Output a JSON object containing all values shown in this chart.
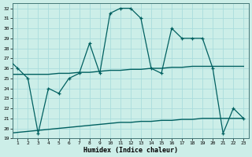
{
  "xlabel": "Humidex (Indice chaleur)",
  "bg_color": "#cceee8",
  "grid_color": "#aadddd",
  "line_color": "#006060",
  "xlim": [
    0.5,
    23.5
  ],
  "ylim": [
    19,
    32.5
  ],
  "x_ticks": [
    1,
    2,
    3,
    4,
    5,
    6,
    7,
    8,
    9,
    10,
    11,
    12,
    13,
    14,
    15,
    16,
    17,
    18,
    19,
    20,
    21,
    22,
    23
  ],
  "y_ticks": [
    19,
    20,
    21,
    22,
    23,
    24,
    25,
    26,
    27,
    28,
    29,
    30,
    31,
    32
  ],
  "main_line_x": [
    0,
    1,
    2,
    3,
    4,
    5,
    6,
    7,
    8,
    9,
    10,
    11,
    12,
    13,
    14,
    15,
    16,
    17,
    18,
    19,
    20,
    21,
    22,
    23
  ],
  "main_line_y": [
    27,
    26,
    25,
    19.5,
    24,
    23.5,
    25,
    25.5,
    28.5,
    25.5,
    31.5,
    32,
    32,
    31,
    26,
    25.5,
    30,
    29,
    29,
    29,
    26,
    19.5,
    22,
    21
  ],
  "trend1_x": [
    0,
    1,
    2,
    3,
    4,
    5,
    6,
    7,
    8,
    9,
    10,
    11,
    12,
    13,
    14,
    15,
    16,
    17,
    18,
    19,
    20,
    21,
    22,
    23
  ],
  "trend1_y": [
    25.4,
    25.4,
    25.4,
    25.4,
    25.4,
    25.5,
    25.5,
    25.6,
    25.6,
    25.7,
    25.8,
    25.8,
    25.9,
    25.9,
    26.0,
    26.0,
    26.1,
    26.1,
    26.2,
    26.2,
    26.2,
    26.2,
    26.2,
    26.2
  ],
  "trend2_x": [
    0,
    1,
    2,
    3,
    4,
    5,
    6,
    7,
    8,
    9,
    10,
    11,
    12,
    13,
    14,
    15,
    16,
    17,
    18,
    19,
    20,
    21,
    22,
    23
  ],
  "trend2_y": [
    19.5,
    19.6,
    19.7,
    19.8,
    19.9,
    20.0,
    20.1,
    20.2,
    20.3,
    20.4,
    20.5,
    20.6,
    20.6,
    20.7,
    20.7,
    20.8,
    20.8,
    20.9,
    20.9,
    21.0,
    21.0,
    21.0,
    21.0,
    21.0
  ]
}
